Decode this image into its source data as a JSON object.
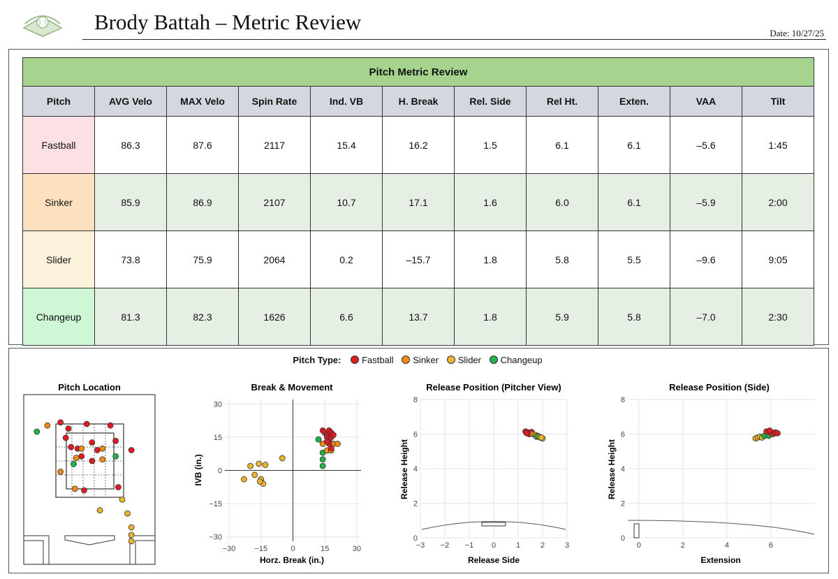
{
  "header": {
    "title": "Brody Battah – Metric Review",
    "date": "Date: 10/27/25"
  },
  "table": {
    "title": "Pitch Metric Review",
    "columns": [
      "Pitch",
      "AVG Velo",
      "MAX Velo",
      "Spin Rate",
      "Ind. VB",
      "H. Break",
      "Rel. Side",
      "Rel Ht.",
      "Exten.",
      "VAA",
      "Tilt"
    ],
    "rows": [
      {
        "pitch": "Fastball",
        "color": "#fde0e3",
        "values": [
          "86.3",
          "87.6",
          "2117",
          "15.4",
          "16.2",
          "1.5",
          "6.1",
          "6.1",
          "–5.6",
          "1:45"
        ]
      },
      {
        "pitch": "Sinker",
        "color": "#fde0bd",
        "values": [
          "85.9",
          "86.9",
          "2107",
          "10.7",
          "17.1",
          "1.6",
          "6.0",
          "6.1",
          "–5.9",
          "2:00"
        ]
      },
      {
        "pitch": "Slider",
        "color": "#fdf3dd",
        "values": [
          "73.8",
          "75.9",
          "2064",
          "0.2",
          "–15.7",
          "1.8",
          "5.8",
          "5.5",
          "–9.6",
          "9:05"
        ]
      },
      {
        "pitch": "Changeup",
        "color": "#cff7d6",
        "values": [
          "81.3",
          "82.3",
          "1626",
          "6.6",
          "13.7",
          "1.8",
          "5.9",
          "5.8",
          "–7.0",
          "2:30"
        ]
      }
    ]
  },
  "legend": {
    "title": "Pitch Type:",
    "items": [
      {
        "name": "Fastball",
        "color": "#e01b24"
      },
      {
        "name": "Sinker",
        "color": "#f28c10"
      },
      {
        "name": "Slider",
        "color": "#e8b431"
      },
      {
        "name": "Changeup",
        "color": "#22b14c"
      }
    ]
  },
  "chart_data": [
    {
      "type": "scatter",
      "title": "Pitch Location",
      "xlabel": "",
      "ylabel": "",
      "xlim": [
        -2.5,
        2.5
      ],
      "ylim": [
        -0.5,
        5.0
      ],
      "points": [
        {
          "type": "Changeup",
          "x": -2.0,
          "y": 3.8
        },
        {
          "type": "Sinker",
          "x": -1.6,
          "y": 4.0
        },
        {
          "type": "Fastball",
          "x": -1.1,
          "y": 4.1
        },
        {
          "type": "Fastball",
          "x": -0.8,
          "y": 3.9
        },
        {
          "type": "Fastball",
          "x": -0.1,
          "y": 4.05
        },
        {
          "type": "Fastball",
          "x": 0.8,
          "y": 4.0
        },
        {
          "type": "Fastball",
          "x": 1.0,
          "y": 3.5
        },
        {
          "type": "Fastball",
          "x": 1.6,
          "y": 3.2
        },
        {
          "type": "Fastball",
          "x": -0.9,
          "y": 3.6
        },
        {
          "type": "Fastball",
          "x": -0.7,
          "y": 3.3
        },
        {
          "type": "Fastball",
          "x": -0.45,
          "y": 3.25
        },
        {
          "type": "Sinker",
          "x": -0.3,
          "y": 3.25
        },
        {
          "type": "Fastball",
          "x": 0.1,
          "y": 3.45
        },
        {
          "type": "Sinker",
          "x": 0.5,
          "y": 3.25
        },
        {
          "type": "Fastball",
          "x": 0.3,
          "y": 3.2
        },
        {
          "type": "Changeup",
          "x": 1.0,
          "y": 3.0
        },
        {
          "type": "Fastball",
          "x": -0.3,
          "y": 3.0
        },
        {
          "type": "Sinker",
          "x": -0.5,
          "y": 2.95
        },
        {
          "type": "Fastball",
          "x": 0.1,
          "y": 2.85
        },
        {
          "type": "Sinker",
          "x": 0.5,
          "y": 2.9
        },
        {
          "type": "Changeup",
          "x": -0.6,
          "y": 2.75
        },
        {
          "type": "Sinker",
          "x": -1.1,
          "y": 2.5
        },
        {
          "type": "Fastball",
          "x": 1.1,
          "y": 2.0
        },
        {
          "type": "Sinker",
          "x": -0.55,
          "y": 1.95
        },
        {
          "type": "Fastball",
          "x": -0.2,
          "y": 1.9
        },
        {
          "type": "Slider",
          "x": 1.25,
          "y": 1.6
        },
        {
          "type": "Slider",
          "x": 0.4,
          "y": 1.25
        },
        {
          "type": "Slider",
          "x": 1.45,
          "y": 1.15
        },
        {
          "type": "Slider",
          "x": 1.6,
          "y": 0.7
        },
        {
          "type": "Slider",
          "x": 1.6,
          "y": 0.45
        },
        {
          "type": "Slider",
          "x": 1.6,
          "y": 0.25
        }
      ]
    },
    {
      "type": "scatter",
      "title": "Break & Movement",
      "xlabel": "Horz. Break (in.)",
      "ylabel": "IVB (in.)",
      "xlim": [
        -32,
        32
      ],
      "ylim": [
        -32,
        32
      ],
      "xticks": [
        "-30",
        "-15",
        "0",
        "15",
        "30"
      ],
      "yticks": [
        "-30",
        "-15",
        "0",
        "15",
        "30"
      ],
      "points": [
        {
          "type": "Slider",
          "x": -23,
          "y": -4
        },
        {
          "type": "Slider",
          "x": -20,
          "y": 2
        },
        {
          "type": "Slider",
          "x": -18,
          "y": -2
        },
        {
          "type": "Slider",
          "x": -16,
          "y": 3
        },
        {
          "type": "Slider",
          "x": -15,
          "y": -4
        },
        {
          "type": "Slider",
          "x": -14,
          "y": -6
        },
        {
          "type": "Slider",
          "x": -15.5,
          "y": -5
        },
        {
          "type": "Slider",
          "x": -13,
          "y": 2.5
        },
        {
          "type": "Slider",
          "x": -5,
          "y": 5.5
        },
        {
          "type": "Changeup",
          "x": 12,
          "y": 14
        },
        {
          "type": "Changeup",
          "x": 14,
          "y": 8
        },
        {
          "type": "Changeup",
          "x": 14,
          "y": 5
        },
        {
          "type": "Changeup",
          "x": 14,
          "y": 2
        },
        {
          "type": "Sinker",
          "x": 14,
          "y": 12
        },
        {
          "type": "Sinker",
          "x": 16,
          "y": 9
        },
        {
          "type": "Sinker",
          "x": 19,
          "y": 12
        },
        {
          "type": "Sinker",
          "x": 21,
          "y": 12
        },
        {
          "type": "Sinker",
          "x": 18,
          "y": 9
        },
        {
          "type": "Fastball",
          "x": 14,
          "y": 18
        },
        {
          "type": "Fastball",
          "x": 15,
          "y": 17
        },
        {
          "type": "Fastball",
          "x": 16,
          "y": 16
        },
        {
          "type": "Fastball",
          "x": 17,
          "y": 18
        },
        {
          "type": "Fastball",
          "x": 18,
          "y": 17
        },
        {
          "type": "Fastball",
          "x": 16,
          "y": 15
        },
        {
          "type": "Fastball",
          "x": 17,
          "y": 14
        },
        {
          "type": "Fastball",
          "x": 18,
          "y": 15
        },
        {
          "type": "Fastball",
          "x": 19,
          "y": 16
        },
        {
          "type": "Fastball",
          "x": 17,
          "y": 12
        },
        {
          "type": "Fastball",
          "x": 18,
          "y": 10
        },
        {
          "type": "Fastball",
          "x": 16,
          "y": 13
        }
      ]
    },
    {
      "type": "scatter",
      "title": "Release Position (Pitcher View)",
      "xlabel": "Release Side",
      "ylabel": "Release Height",
      "xlim": [
        -3,
        3
      ],
      "ylim": [
        0,
        8
      ],
      "xticks": [
        "-3",
        "-2",
        "-1",
        "0",
        "1",
        "2",
        "3"
      ],
      "yticks": [
        "0",
        "2",
        "4",
        "6",
        "8"
      ],
      "points": [
        {
          "type": "Fastball",
          "x": 1.3,
          "y": 6.15
        },
        {
          "type": "Fastball",
          "x": 1.4,
          "y": 6.1
        },
        {
          "type": "Fastball",
          "x": 1.5,
          "y": 6.05
        },
        {
          "type": "Fastball",
          "x": 1.45,
          "y": 6.0
        },
        {
          "type": "Fastball",
          "x": 1.55,
          "y": 6.12
        },
        {
          "type": "Fastball",
          "x": 1.35,
          "y": 6.05
        },
        {
          "type": "Sinker",
          "x": 1.6,
          "y": 6.0
        },
        {
          "type": "Sinker",
          "x": 1.7,
          "y": 5.95
        },
        {
          "type": "Changeup",
          "x": 1.8,
          "y": 5.9
        },
        {
          "type": "Changeup",
          "x": 1.75,
          "y": 5.85
        },
        {
          "type": "Slider",
          "x": 1.85,
          "y": 5.85
        },
        {
          "type": "Slider",
          "x": 1.9,
          "y": 5.8
        },
        {
          "type": "Slider",
          "x": 2.0,
          "y": 5.75
        },
        {
          "type": "Slider",
          "x": 1.95,
          "y": 5.8
        }
      ]
    },
    {
      "type": "scatter",
      "title": "Release Position (Side)",
      "xlabel": "Extension",
      "ylabel": "Release Height",
      "xlim": [
        -0.5,
        8
      ],
      "ylim": [
        0,
        8
      ],
      "xticks": [
        "0",
        "2",
        "4",
        "6"
      ],
      "yticks": [
        "0",
        "2",
        "4",
        "6",
        "8"
      ],
      "points": [
        {
          "type": "Slider",
          "x": 5.3,
          "y": 5.75
        },
        {
          "type": "Slider",
          "x": 5.4,
          "y": 5.8
        },
        {
          "type": "Slider",
          "x": 5.5,
          "y": 5.85
        },
        {
          "type": "Slider",
          "x": 5.6,
          "y": 5.8
        },
        {
          "type": "Changeup",
          "x": 5.7,
          "y": 5.9
        },
        {
          "type": "Changeup",
          "x": 5.9,
          "y": 5.9
        },
        {
          "type": "Sinker",
          "x": 6.0,
          "y": 6.0
        },
        {
          "type": "Sinker",
          "x": 6.1,
          "y": 6.0
        },
        {
          "type": "Fastball",
          "x": 5.8,
          "y": 6.15
        },
        {
          "type": "Fastball",
          "x": 6.0,
          "y": 6.1
        },
        {
          "type": "Fastball",
          "x": 6.1,
          "y": 6.05
        },
        {
          "type": "Fastball",
          "x": 6.2,
          "y": 6.1
        },
        {
          "type": "Fastball",
          "x": 6.3,
          "y": 6.05
        },
        {
          "type": "Fastball",
          "x": 5.95,
          "y": 6.2
        }
      ]
    }
  ]
}
